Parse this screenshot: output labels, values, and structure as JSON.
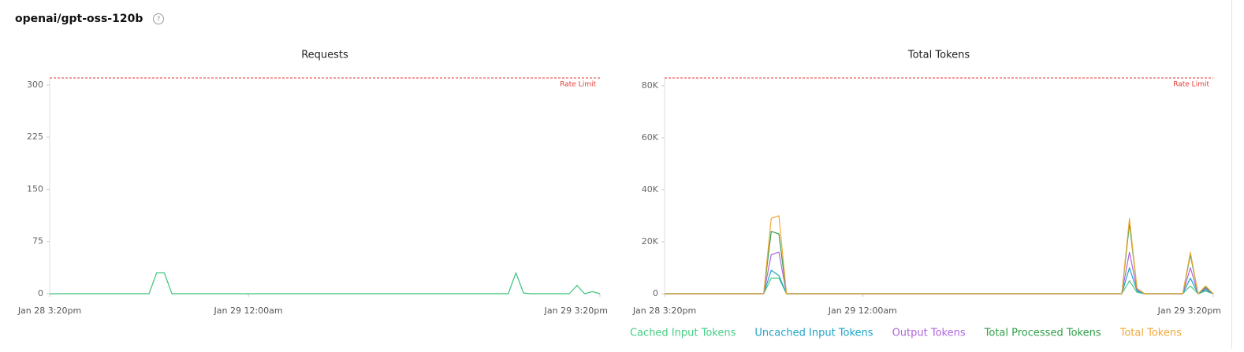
{
  "page_title": "openai/gpt-oss-120b",
  "chart_data": [
    {
      "type": "line",
      "title": "Requests",
      "categories": [
        "Jan 28 3:20pm",
        null,
        null,
        null,
        null,
        null,
        null,
        null,
        null,
        null,
        null,
        null,
        null,
        null,
        null,
        null,
        null,
        null,
        null,
        null,
        null,
        null,
        null,
        null,
        null,
        null,
        "Jan 29 12:00am",
        null,
        null,
        null,
        null,
        null,
        null,
        null,
        null,
        null,
        null,
        null,
        null,
        null,
        null,
        null,
        null,
        null,
        null,
        null,
        null,
        null,
        null,
        null,
        null,
        null,
        null,
        null,
        null,
        null,
        null,
        null,
        null,
        null,
        null,
        null,
        null,
        null,
        null,
        null,
        null,
        null,
        null,
        null,
        null,
        null,
        "Jan 29 3:20pm"
      ],
      "values": [
        0,
        0,
        0,
        0,
        0,
        0,
        0,
        0,
        0,
        0,
        0,
        0,
        0,
        0,
        30,
        30,
        0,
        0,
        0,
        0,
        0,
        0,
        0,
        0,
        0,
        0,
        0,
        0,
        0,
        0,
        0,
        0,
        0,
        0,
        0,
        0,
        0,
        0,
        0,
        0,
        0,
        0,
        0,
        0,
        0,
        0,
        0,
        0,
        0,
        0,
        0,
        0,
        0,
        0,
        0,
        0,
        0,
        0,
        0,
        0,
        0,
        30,
        1,
        0,
        0,
        0,
        0,
        0,
        0,
        12,
        0,
        3,
        0
      ],
      "color": "#3cc47c",
      "ylim": [
        0,
        310
      ],
      "yticks": [
        0,
        75,
        150,
        225,
        300
      ],
      "rate_limit": {
        "value": 310,
        "label": "Rate Limit"
      }
    },
    {
      "type": "line",
      "title": "Total Tokens",
      "categories": [
        "Jan 28 3:20pm",
        null,
        null,
        null,
        null,
        null,
        null,
        null,
        null,
        null,
        null,
        null,
        null,
        null,
        null,
        null,
        null,
        null,
        null,
        null,
        null,
        null,
        null,
        null,
        null,
        null,
        "Jan 29 12:00am",
        null,
        null,
        null,
        null,
        null,
        null,
        null,
        null,
        null,
        null,
        null,
        null,
        null,
        null,
        null,
        null,
        null,
        null,
        null,
        null,
        null,
        null,
        null,
        null,
        null,
        null,
        null,
        null,
        null,
        null,
        null,
        null,
        null,
        null,
        null,
        null,
        null,
        null,
        null,
        null,
        null,
        null,
        null,
        null,
        null,
        "Jan 29 3:20pm"
      ],
      "series": [
        {
          "name": "Cached Input Tokens",
          "color": "#45cc85",
          "values": [
            0,
            0,
            0,
            0,
            0,
            0,
            0,
            0,
            0,
            0,
            0,
            0,
            0,
            0,
            6000,
            6000,
            0,
            0,
            0,
            0,
            0,
            0,
            0,
            0,
            0,
            0,
            0,
            0,
            0,
            0,
            0,
            0,
            0,
            0,
            0,
            0,
            0,
            0,
            0,
            0,
            0,
            0,
            0,
            0,
            0,
            0,
            0,
            0,
            0,
            0,
            0,
            0,
            0,
            0,
            0,
            0,
            0,
            0,
            0,
            0,
            0,
            5000,
            500,
            0,
            0,
            0,
            0,
            0,
            0,
            3000,
            0,
            1000,
            0
          ]
        },
        {
          "name": "Uncached Input Tokens",
          "color": "#1ca3c6",
          "values": [
            0,
            0,
            0,
            0,
            0,
            0,
            0,
            0,
            0,
            0,
            0,
            0,
            0,
            0,
            9000,
            7000,
            0,
            0,
            0,
            0,
            0,
            0,
            0,
            0,
            0,
            0,
            0,
            0,
            0,
            0,
            0,
            0,
            0,
            0,
            0,
            0,
            0,
            0,
            0,
            0,
            0,
            0,
            0,
            0,
            0,
            0,
            0,
            0,
            0,
            0,
            0,
            0,
            0,
            0,
            0,
            0,
            0,
            0,
            0,
            0,
            0,
            10000,
            1000,
            0,
            0,
            0,
            0,
            0,
            0,
            6000,
            0,
            1500,
            0
          ]
        },
        {
          "name": "Output Tokens",
          "color": "#b065dc",
          "values": [
            0,
            0,
            0,
            0,
            0,
            0,
            0,
            0,
            0,
            0,
            0,
            0,
            0,
            0,
            15000,
            16000,
            0,
            0,
            0,
            0,
            0,
            0,
            0,
            0,
            0,
            0,
            0,
            0,
            0,
            0,
            0,
            0,
            0,
            0,
            0,
            0,
            0,
            0,
            0,
            0,
            0,
            0,
            0,
            0,
            0,
            0,
            0,
            0,
            0,
            0,
            0,
            0,
            0,
            0,
            0,
            0,
            0,
            0,
            0,
            0,
            0,
            16000,
            1500,
            0,
            0,
            0,
            0,
            0,
            0,
            10000,
            0,
            2000,
            0
          ]
        },
        {
          "name": "Total Processed Tokens",
          "color": "#2f9e48",
          "values": [
            0,
            0,
            0,
            0,
            0,
            0,
            0,
            0,
            0,
            0,
            0,
            0,
            0,
            0,
            24000,
            23000,
            0,
            0,
            0,
            0,
            0,
            0,
            0,
            0,
            0,
            0,
            0,
            0,
            0,
            0,
            0,
            0,
            0,
            0,
            0,
            0,
            0,
            0,
            0,
            0,
            0,
            0,
            0,
            0,
            0,
            0,
            0,
            0,
            0,
            0,
            0,
            0,
            0,
            0,
            0,
            0,
            0,
            0,
            0,
            0,
            0,
            27000,
            2000,
            0,
            0,
            0,
            0,
            0,
            0,
            15000,
            0,
            2500,
            0
          ]
        },
        {
          "name": "Total Tokens",
          "color": "#f2a83a",
          "values": [
            0,
            0,
            0,
            0,
            0,
            0,
            0,
            0,
            0,
            0,
            0,
            0,
            0,
            0,
            29000,
            30000,
            0,
            0,
            0,
            0,
            0,
            0,
            0,
            0,
            0,
            0,
            0,
            0,
            0,
            0,
            0,
            0,
            0,
            0,
            0,
            0,
            0,
            0,
            0,
            0,
            0,
            0,
            0,
            0,
            0,
            0,
            0,
            0,
            0,
            0,
            0,
            0,
            0,
            0,
            0,
            0,
            0,
            0,
            0,
            0,
            0,
            29000,
            2000,
            0,
            0,
            0,
            0,
            0,
            0,
            16000,
            0,
            3000,
            0
          ]
        }
      ],
      "ylim": [
        0,
        83000
      ],
      "yticks": [
        0,
        {
          "value": 20000,
          "label": "20K"
        },
        {
          "value": 40000,
          "label": "40K"
        },
        {
          "value": 60000,
          "label": "60K"
        },
        {
          "value": 80000,
          "label": "80K"
        }
      ],
      "rate_limit": {
        "value": 83000,
        "label": "Rate Limit"
      }
    }
  ]
}
